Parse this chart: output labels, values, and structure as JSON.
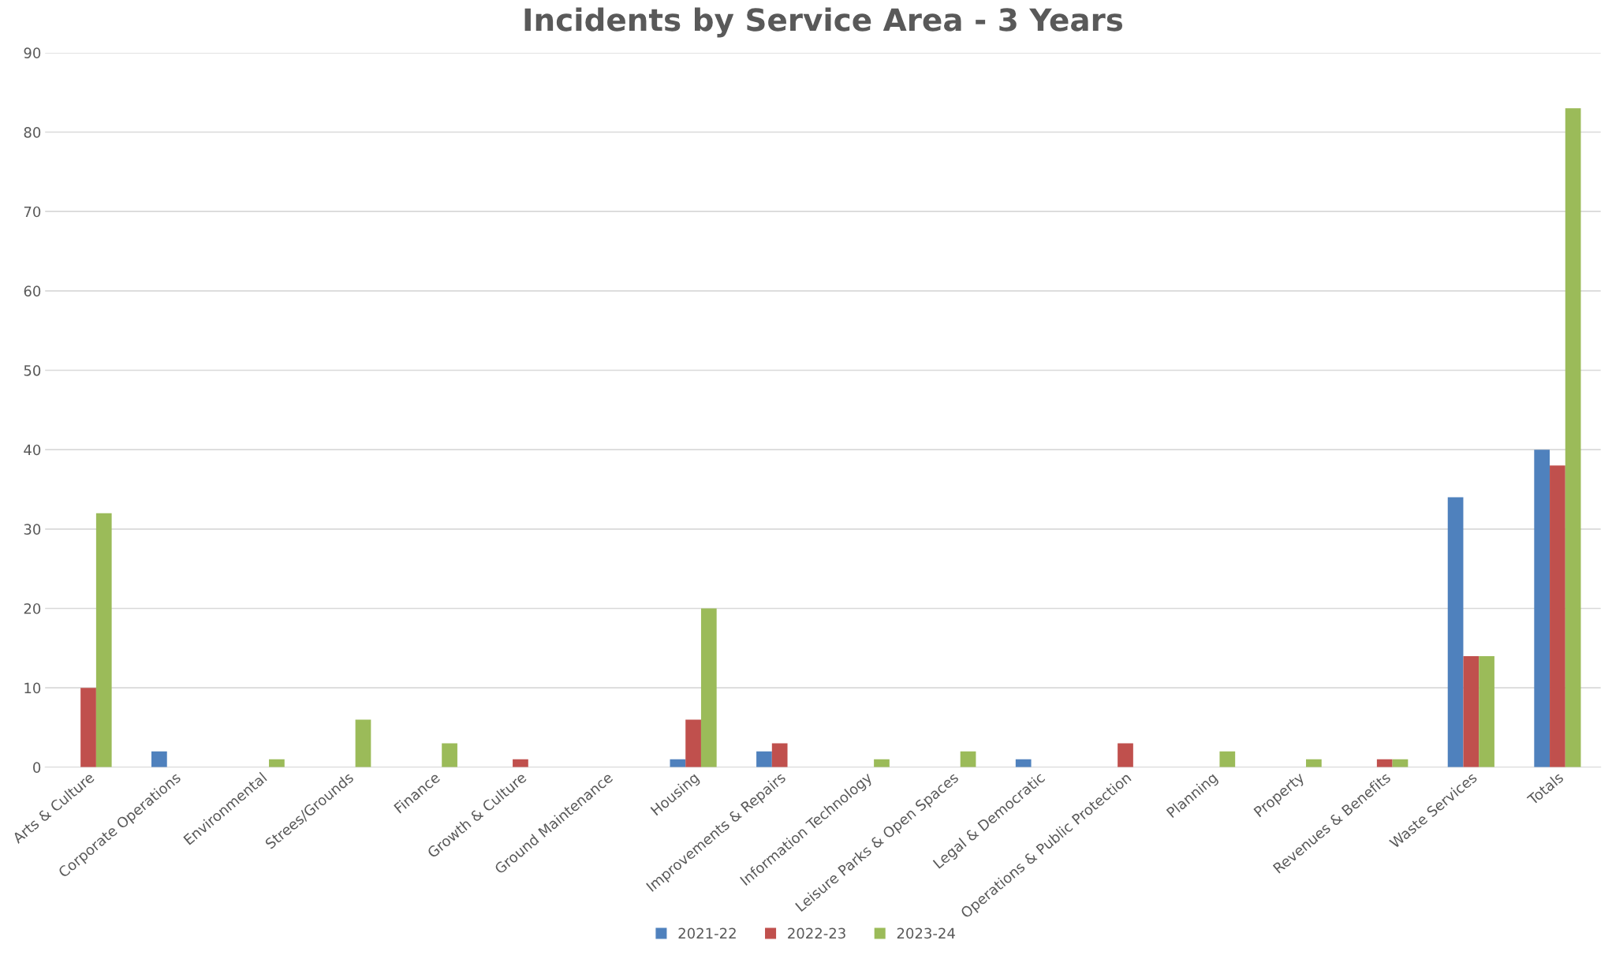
{
  "chart_data": {
    "type": "bar",
    "title": "Incidents by Service Area - 3 Years",
    "categories": [
      "Arts & Culture",
      "Corporate Operations",
      "Environmental",
      "Strees/Grounds",
      "Finance",
      "Growth & Culture",
      "Ground Maintenance",
      "Housing",
      "Improvements & Repairs",
      "Information Technology",
      "Leisure Parks & Open Spaces",
      "Legal & Democratic",
      "Operations & Public Protection",
      "Planning",
      "Property",
      "Revenues & Benefits",
      "Waste Services",
      "Totals"
    ],
    "series": [
      {
        "name": "2021-22",
        "color": "#4f81bd",
        "values": [
          0,
          2,
          0,
          0,
          0,
          0,
          0,
          1,
          2,
          0,
          0,
          1,
          0,
          0,
          0,
          0,
          34,
          40
        ]
      },
      {
        "name": "2022-23",
        "color": "#c0504d",
        "values": [
          10,
          0,
          0,
          0,
          0,
          1,
          0,
          6,
          3,
          0,
          0,
          0,
          3,
          0,
          0,
          1,
          14,
          38
        ]
      },
      {
        "name": "2023-24",
        "color": "#9bbb59",
        "values": [
          32,
          0,
          1,
          6,
          3,
          0,
          0,
          20,
          0,
          1,
          2,
          0,
          0,
          2,
          1,
          1,
          14,
          83
        ]
      }
    ],
    "ylim": [
      0,
      90
    ],
    "yticks": [
      0,
      10,
      20,
      30,
      40,
      50,
      60,
      70,
      80,
      90
    ],
    "grid": "y",
    "legend": "bottom"
  }
}
